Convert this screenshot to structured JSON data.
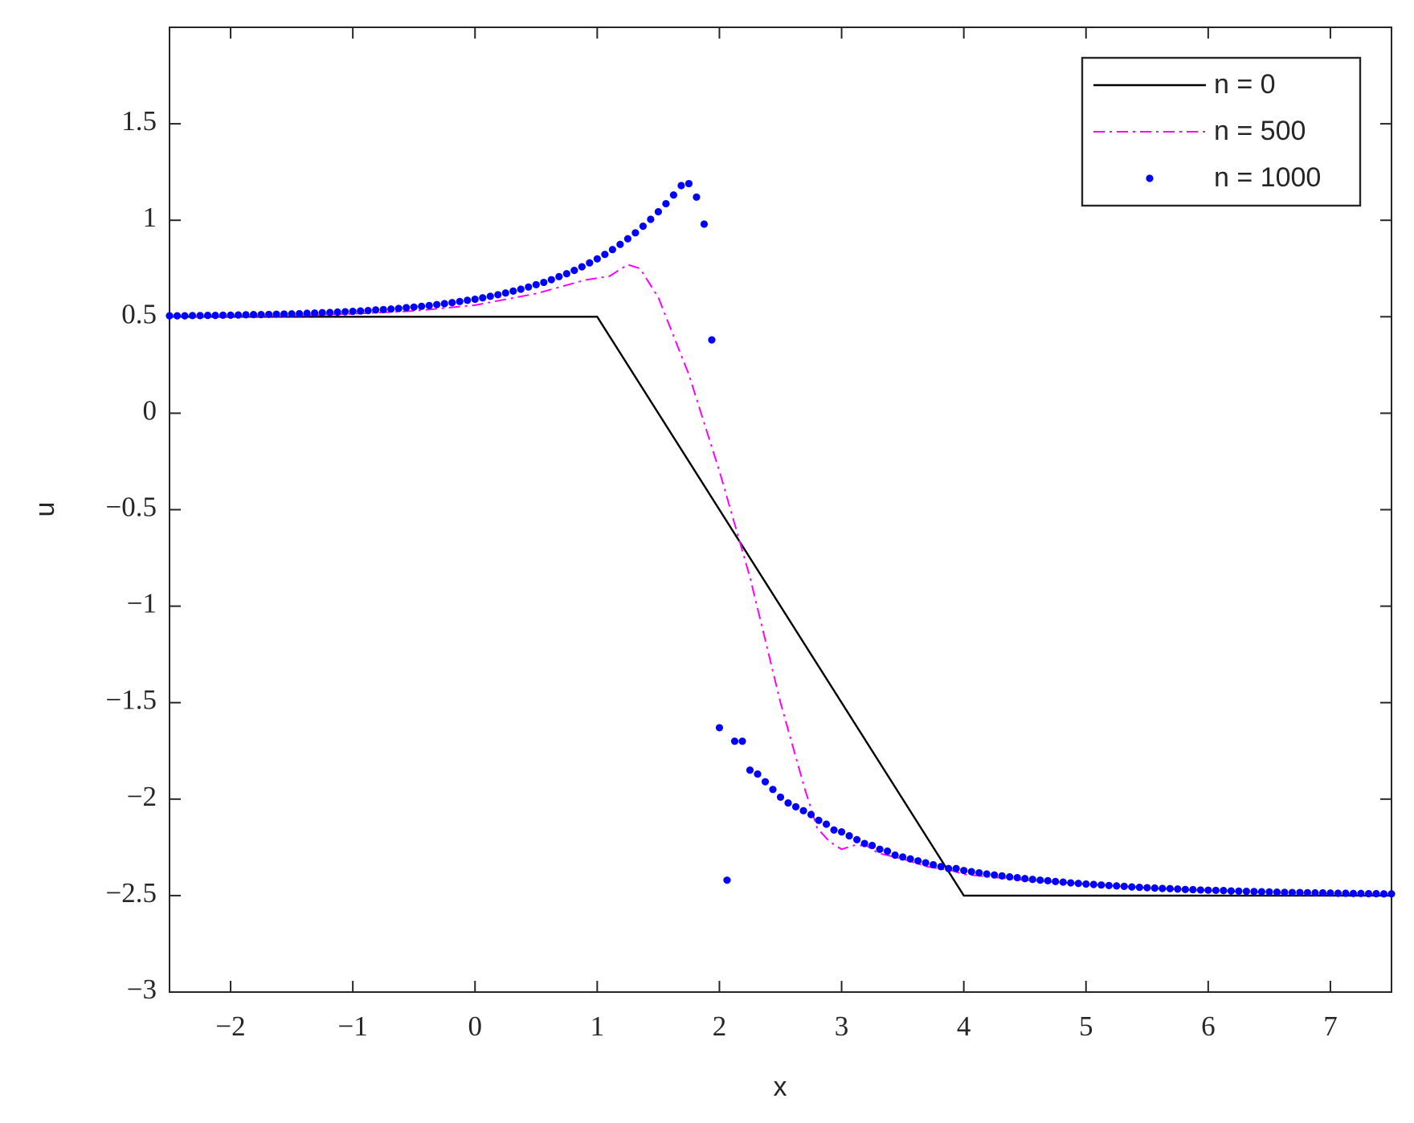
{
  "chart_data": {
    "type": "line",
    "xlabel": "x",
    "ylabel": "u",
    "xlim": [
      -2.5,
      7.5
    ],
    "ylim": [
      -3,
      2
    ],
    "xticks": [
      {
        "value": -2,
        "label": "−2"
      },
      {
        "value": -1,
        "label": "−1"
      },
      0,
      1,
      2,
      3,
      4,
      5,
      6,
      7
    ],
    "yticks": [
      {
        "value": -3,
        "label": "−3"
      },
      {
        "value": -2.5,
        "label": "−2.5"
      },
      {
        "value": -2,
        "label": "−2"
      },
      {
        "value": -1.5,
        "label": "−1.5"
      },
      {
        "value": -1,
        "label": "−1"
      },
      {
        "value": -0.5,
        "label": "−0.5"
      },
      0,
      0.5,
      1,
      1.5
    ],
    "grid": false,
    "legend_loc": "upper right",
    "series": [
      {
        "name": "n = 0",
        "color": "#000000",
        "style": "solid",
        "x": [
          -2.5,
          1,
          4,
          7.5
        ],
        "values": [
          0.5,
          0.5,
          -2.5,
          -2.5
        ]
      },
      {
        "name": "n = 500",
        "color": "#ff00ff",
        "style": "dash-dot",
        "x": [
          -2.5,
          -1.5,
          -1,
          -0.5,
          0,
          0.5,
          0.9,
          1.1,
          1.25,
          1.35,
          1.5,
          1.75,
          2,
          2.25,
          2.5,
          2.7,
          2.8,
          2.9,
          3,
          3.1,
          3.2,
          3.3,
          3.5,
          3.7,
          3.9,
          4,
          4.5,
          5,
          5.5,
          6,
          6.5,
          7,
          7.5
        ],
        "values": [
          0.5,
          0.505,
          0.515,
          0.53,
          0.56,
          0.62,
          0.69,
          0.71,
          0.77,
          0.75,
          0.6,
          0.2,
          -0.3,
          -0.85,
          -1.5,
          -1.95,
          -2.15,
          -2.22,
          -2.26,
          -2.24,
          -2.24,
          -2.28,
          -2.31,
          -2.35,
          -2.37,
          -2.39,
          -2.42,
          -2.44,
          -2.46,
          -2.475,
          -2.485,
          -2.49,
          -2.493
        ]
      },
      {
        "name": "n = 1000",
        "color": "#0000ff",
        "style": "markers",
        "x": [
          -2.5,
          -2.4375,
          -2.375,
          -2.3125,
          -2.25,
          -2.1875,
          -2.125,
          -2.0625,
          -2,
          -1.9375,
          -1.875,
          -1.8125,
          -1.75,
          -1.6875,
          -1.625,
          -1.5625,
          -1.5,
          -1.4375,
          -1.375,
          -1.3125,
          -1.25,
          -1.1875,
          -1.125,
          -1.0625,
          -1,
          -0.9375,
          -0.875,
          -0.8125,
          -0.75,
          -0.6875,
          -0.625,
          -0.5625,
          -0.5,
          -0.4375,
          -0.375,
          -0.3125,
          -0.25,
          -0.1875,
          -0.125,
          -0.0625,
          0,
          0.0625,
          0.125,
          0.1875,
          0.25,
          0.3125,
          0.375,
          0.4375,
          0.5,
          0.5625,
          0.625,
          0.6875,
          0.75,
          0.8125,
          0.875,
          0.9375,
          1,
          1.0625,
          1.125,
          1.1875,
          1.25,
          1.3125,
          1.375,
          1.4375,
          1.5,
          1.5625,
          1.625,
          1.6875,
          1.75,
          1.8125,
          1.875,
          1.9375,
          2,
          2.0625,
          2.125,
          2.1875,
          2.25,
          2.3125,
          2.375,
          2.4375,
          2.5,
          2.5625,
          2.625,
          2.6875,
          2.75,
          2.8125,
          2.875,
          2.9375,
          3,
          3.0625,
          3.125,
          3.1875,
          3.25,
          3.3125,
          3.375,
          3.4375,
          3.5,
          3.5625,
          3.625,
          3.6875,
          3.75,
          3.8125,
          3.875,
          3.9375,
          4,
          4.0625,
          4.125,
          4.1875,
          4.25,
          4.3125,
          4.375,
          4.4375,
          4.5,
          4.5625,
          4.625,
          4.6875,
          4.75,
          4.8125,
          4.875,
          4.9375,
          5,
          5.0625,
          5.125,
          5.1875,
          5.25,
          5.3125,
          5.375,
          5.4375,
          5.5,
          5.5625,
          5.625,
          5.6875,
          5.75,
          5.8125,
          5.875,
          5.9375,
          6,
          6.0625,
          6.125,
          6.1875,
          6.25,
          6.3125,
          6.375,
          6.4375,
          6.5,
          6.5625,
          6.625,
          6.6875,
          6.75,
          6.8125,
          6.875,
          6.9375,
          7,
          7.0625,
          7.125,
          7.1875,
          7.25,
          7.3125,
          7.375,
          7.4375,
          7.5
        ],
        "values": [
          0.505,
          0.505,
          0.505,
          0.506,
          0.506,
          0.507,
          0.507,
          0.508,
          0.508,
          0.509,
          0.51,
          0.511,
          0.511,
          0.512,
          0.513,
          0.514,
          0.515,
          0.516,
          0.518,
          0.519,
          0.521,
          0.522,
          0.524,
          0.526,
          0.528,
          0.53,
          0.532,
          0.535,
          0.537,
          0.54,
          0.543,
          0.547,
          0.55,
          0.554,
          0.558,
          0.563,
          0.568,
          0.573,
          0.579,
          0.585,
          0.591,
          0.598,
          0.606,
          0.614,
          0.623,
          0.633,
          0.643,
          0.654,
          0.666,
          0.678,
          0.692,
          0.708,
          0.723,
          0.74,
          0.759,
          0.779,
          0.8,
          0.823,
          0.848,
          0.875,
          0.904,
          0.935,
          0.969,
          1.005,
          1.044,
          1.086,
          1.131,
          1.18,
          1.19,
          1.12,
          0.98,
          0.38,
          -1.63,
          -2.42,
          -1.7,
          -1.7,
          -1.85,
          -1.87,
          -1.91,
          -1.95,
          -1.99,
          -2.02,
          -2.04,
          -2.06,
          -2.08,
          -2.11,
          -2.13,
          -2.16,
          -2.17,
          -2.19,
          -2.21,
          -2.23,
          -2.24,
          -2.26,
          -2.27,
          -2.29,
          -2.3,
          -2.31,
          -2.32,
          -2.33,
          -2.34,
          -2.35,
          -2.36,
          -2.36,
          -2.37,
          -2.376,
          -2.382,
          -2.388,
          -2.393,
          -2.398,
          -2.403,
          -2.407,
          -2.412,
          -2.416,
          -2.42,
          -2.423,
          -2.427,
          -2.43,
          -2.434,
          -2.437,
          -2.44,
          -2.442,
          -2.445,
          -2.448,
          -2.45,
          -2.452,
          -2.455,
          -2.457,
          -2.459,
          -2.461,
          -2.463,
          -2.464,
          -2.466,
          -2.468,
          -2.469,
          -2.471,
          -2.472,
          -2.473,
          -2.474,
          -2.476,
          -2.477,
          -2.478,
          -2.479,
          -2.48,
          -2.481,
          -2.482,
          -2.483,
          -2.484,
          -2.484,
          -2.485,
          -2.486,
          -2.486,
          -2.487,
          -2.488,
          -2.488,
          -2.489,
          -2.489,
          -2.49,
          -2.49,
          -2.491,
          -2.491
        ]
      }
    ]
  }
}
